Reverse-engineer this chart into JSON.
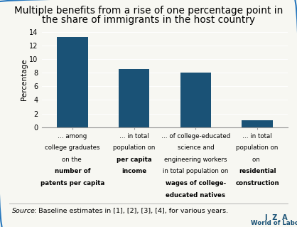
{
  "title_line1": "Multiple benefits from a rise of one percentage point in",
  "title_line2": "the share of immigrants in the host country",
  "values": [
    13.2,
    8.5,
    8.0,
    1.0
  ],
  "bar_color": "#1a5276",
  "ylabel": "Percentage",
  "ylim": [
    0,
    14
  ],
  "yticks": [
    0,
    2,
    4,
    6,
    8,
    10,
    12,
    14
  ],
  "source_italic": "Source",
  "source_rest": ": Baseline estimates in [1], [2], [3], [4], for various years.",
  "iza_text": "I  Z  A",
  "wol_text": "World of Labor",
  "background_color": "#f7f7f2",
  "border_color": "#2878be",
  "title_fontsize": 9.8,
  "bar_width": 0.5,
  "label_data": [
    {
      "lines": [
        "… among",
        "college graduates",
        "on the ",
        "patents per capita"
      ],
      "bold_from": 2
    },
    {
      "lines": [
        "… in total",
        "population on",
        "per capita",
        "income"
      ],
      "bold_from": 2
    },
    {
      "lines": [
        "… of college-educated",
        "science and",
        "engineering workers",
        "in total population on",
        "wages of college-",
        "educated natives"
      ],
      "bold_from": 4
    },
    {
      "lines": [
        "… in total",
        "population on",
        "on ",
        "construction"
      ],
      "bold_from": 2
    }
  ]
}
